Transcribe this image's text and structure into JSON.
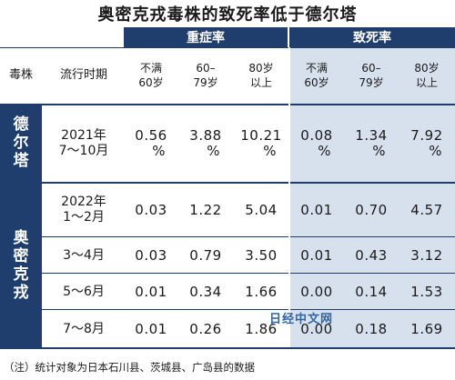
{
  "title": "奥密克戎毒株的致死率低于德尔塔",
  "headers": {
    "severe": "重症率",
    "fatal": "致死率",
    "strain_col": "毒株",
    "period_col": "流行时期",
    "age_groups": [
      [
        "不满",
        "60岁"
      ],
      [
        "60–",
        "79岁"
      ],
      [
        "80岁",
        "以上"
      ],
      [
        "不满",
        "60岁"
      ],
      [
        "60–",
        "79岁"
      ],
      [
        "80岁",
        "以上"
      ]
    ]
  },
  "strains": {
    "delta": "德尔塔",
    "omicron": "奥密克戎"
  },
  "rows": [
    {
      "period": [
        "2021年",
        "7～10月"
      ],
      "values": [
        [
          "0.56",
          "%"
        ],
        [
          "3.88",
          "%"
        ],
        [
          "10.21",
          "%"
        ],
        [
          "0.08",
          "%"
        ],
        [
          "1.34",
          "%"
        ],
        [
          "7.92",
          "%"
        ]
      ]
    },
    {
      "period": [
        "2022年",
        "1～2月"
      ],
      "values": [
        [
          "0.03"
        ],
        [
          "1.22"
        ],
        [
          "5.04"
        ],
        [
          "0.01"
        ],
        [
          "0.70"
        ],
        [
          "4.57"
        ]
      ]
    },
    {
      "period": [
        "3～4月"
      ],
      "values": [
        [
          "0.03"
        ],
        [
          "0.79"
        ],
        [
          "3.50"
        ],
        [
          "0.01"
        ],
        [
          "0.43"
        ],
        [
          "3.12"
        ]
      ]
    },
    {
      "period": [
        "5～6月"
      ],
      "values": [
        [
          "0.01"
        ],
        [
          "0.34"
        ],
        [
          "1.66"
        ],
        [
          "0.00"
        ],
        [
          "0.14"
        ],
        [
          "1.53"
        ]
      ]
    },
    {
      "period": [
        "7～8月"
      ],
      "values": [
        [
          "0.01"
        ],
        [
          "0.26"
        ],
        [
          "1.86"
        ],
        [
          "0.00"
        ],
        [
          "0.18"
        ],
        [
          "1.69"
        ]
      ]
    }
  ],
  "watermark": "日经中文网",
  "note": "（注）统计对象为日本石川县、茨城县、广岛县的数据",
  "colors": {
    "header_band": "#1f3e6e",
    "right_shade": "#d7e1ee"
  }
}
